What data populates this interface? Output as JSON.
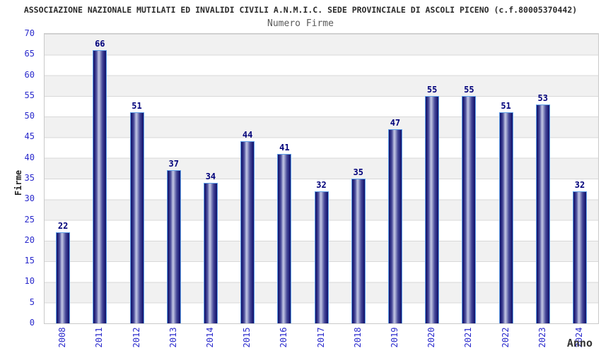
{
  "header": {
    "title": "ASSOCIAZIONE NAZIONALE MUTILATI ED INVALIDI CIVILI A.N.M.I.C. SEDE PROVINCIALE DI ASCOLI PICENO (c.f.80005370442)",
    "subtitle": "Numero Firme"
  },
  "chart_data": {
    "type": "bar",
    "title": "ASSOCIAZIONE NAZIONALE MUTILATI ED INVALIDI CIVILI A.N.M.I.C. SEDE PROVINCIALE DI ASCOLI PICENO (c.f.80005370442)",
    "subtitle": "Numero Firme",
    "categories": [
      "2008",
      "2011",
      "2012",
      "2013",
      "2014",
      "2015",
      "2016",
      "2017",
      "2018",
      "2019",
      "2020",
      "2021",
      "2022",
      "2023",
      "2024"
    ],
    "values": [
      22,
      66,
      51,
      37,
      34,
      44,
      41,
      32,
      35,
      47,
      55,
      55,
      51,
      53,
      32
    ],
    "xlabel": "Anno",
    "ylabel": "Firme",
    "ylim": [
      0,
      70
    ],
    "yticks": [
      0,
      5,
      10,
      15,
      20,
      25,
      30,
      35,
      40,
      45,
      50,
      55,
      60,
      65,
      70
    ],
    "grid": true,
    "legend_position": "none",
    "value_labels_shown": true,
    "colors": {
      "bar_dark": "#14146a",
      "bar_light": "#c2c6e4",
      "bar_border": "#5f9fe8",
      "tick_label": "#2929cc",
      "value_label": "#00007a",
      "band_gray": "#f1f1f1",
      "band_white": "#ffffff",
      "grid_line": "#d8d8d8",
      "title_color": "#2b2b2b",
      "subtitle_color": "#5a5a5a"
    }
  }
}
